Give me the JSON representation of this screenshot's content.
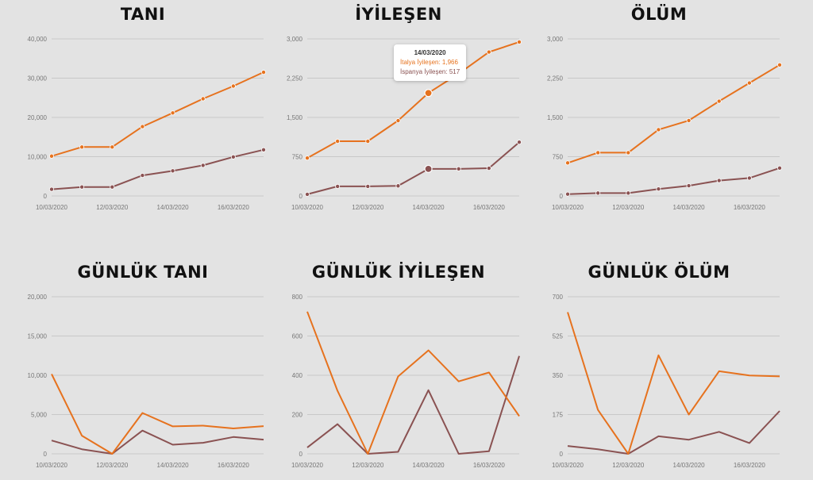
{
  "colors": {
    "italy": "#e6721e",
    "spain": "#8a5252",
    "grid": "#c8c8c8",
    "tick": "#777777"
  },
  "chart_data": [
    {
      "type": "line",
      "title": "TANI",
      "categories": [
        "10/03/2020",
        "11/03/2020",
        "12/03/2020",
        "13/03/2020",
        "14/03/2020",
        "15/03/2020",
        "16/03/2020",
        "17/03/2020"
      ],
      "x_tick_labels": [
        "10/03/2020",
        "12/03/2020",
        "14/03/2020",
        "16/03/2020"
      ],
      "y_ticks": [
        "0",
        "10,000",
        "20,000",
        "30,000",
        "40,000"
      ],
      "ylim": [
        0,
        40000
      ],
      "markers": true,
      "series": [
        {
          "values": [
            10149,
            12462,
            12462,
            17660,
            21157,
            24747,
            27980,
            31506
          ]
        },
        {
          "values": [
            1695,
            2277,
            2277,
            5232,
            6391,
            7798,
            9942,
            11748
          ]
        }
      ]
    },
    {
      "type": "line",
      "title": "İYİLEŞEN",
      "categories": [
        "10/03/2020",
        "11/03/2020",
        "12/03/2020",
        "13/03/2020",
        "14/03/2020",
        "15/03/2020",
        "16/03/2020",
        "17/03/2020"
      ],
      "x_tick_labels": [
        "10/03/2020",
        "12/03/2020",
        "14/03/2020",
        "16/03/2020"
      ],
      "y_ticks": [
        "0",
        "750",
        "1,500",
        "2,250",
        "3,000"
      ],
      "ylim": [
        0,
        3000
      ],
      "markers": true,
      "series": [
        {
          "values": [
            724,
            1045,
            1045,
            1439,
            1966,
            2335,
            2749,
            2941
          ]
        },
        {
          "values": [
            32,
            183,
            183,
            193,
            517,
            517,
            530,
            1028
          ]
        }
      ],
      "tooltip": {
        "index": 4,
        "date": "14/03/2020",
        "line1": "İtalya İyileşen: 1,966",
        "line2": "İspanya İyileşen: 517"
      }
    },
    {
      "type": "line",
      "title": "ÖLÜM",
      "categories": [
        "10/03/2020",
        "11/03/2020",
        "12/03/2020",
        "13/03/2020",
        "14/03/2020",
        "15/03/2020",
        "16/03/2020",
        "17/03/2020"
      ],
      "x_tick_labels": [
        "10/03/2020",
        "12/03/2020",
        "14/03/2020",
        "16/03/2020"
      ],
      "y_ticks": [
        "0",
        "750",
        "1,500",
        "2,250",
        "3,000"
      ],
      "ylim": [
        0,
        3000
      ],
      "markers": true,
      "series": [
        {
          "values": [
            631,
            827,
            827,
            1266,
            1441,
            1809,
            2158,
            2503
          ]
        },
        {
          "values": [
            35,
            55,
            55,
            133,
            196,
            294,
            342,
            533
          ]
        }
      ]
    },
    {
      "type": "line",
      "title": "GÜNLÜK TANI",
      "categories": [
        "10/03/2020",
        "11/03/2020",
        "12/03/2020",
        "13/03/2020",
        "14/03/2020",
        "15/03/2020",
        "16/03/2020",
        "17/03/2020"
      ],
      "x_tick_labels": [
        "10/03/2020",
        "12/03/2020",
        "14/03/2020",
        "16/03/2020"
      ],
      "y_ticks": [
        "0",
        "5,000",
        "10,000",
        "15,000",
        "20,000"
      ],
      "ylim": [
        0,
        20000
      ],
      "markers": false,
      "series": [
        {
          "values": [
            10149,
            2313,
            0,
            5198,
            3497,
            3590,
            3233,
            3526
          ]
        },
        {
          "values": [
            1695,
            582,
            0,
            2955,
            1159,
            1407,
            2144,
            1806
          ]
        }
      ]
    },
    {
      "type": "line",
      "title": "GÜNLÜK İYİLEŞEN",
      "categories": [
        "10/03/2020",
        "11/03/2020",
        "12/03/2020",
        "13/03/2020",
        "14/03/2020",
        "15/03/2020",
        "16/03/2020",
        "17/03/2020"
      ],
      "x_tick_labels": [
        "10/03/2020",
        "12/03/2020",
        "14/03/2020",
        "16/03/2020"
      ],
      "y_ticks": [
        "0",
        "200",
        "400",
        "600",
        "800"
      ],
      "ylim": [
        0,
        800
      ],
      "markers": false,
      "series": [
        {
          "values": [
            724,
            321,
            0,
            394,
            527,
            369,
            414,
            192
          ]
        },
        {
          "values": [
            32,
            151,
            0,
            10,
            324,
            0,
            13,
            498
          ]
        }
      ]
    },
    {
      "type": "line",
      "title": "GÜNLÜK ÖLÜM",
      "categories": [
        "10/03/2020",
        "11/03/2020",
        "12/03/2020",
        "13/03/2020",
        "14/03/2020",
        "15/03/2020",
        "16/03/2020",
        "17/03/2020"
      ],
      "x_tick_labels": [
        "10/03/2020",
        "12/03/2020",
        "14/03/2020",
        "16/03/2020"
      ],
      "y_ticks": [
        "0",
        "175",
        "350",
        "525",
        "700"
      ],
      "ylim": [
        0,
        700
      ],
      "markers": false,
      "series": [
        {
          "values": [
            631,
            196,
            0,
            439,
            175,
            368,
            349,
            345
          ]
        },
        {
          "values": [
            35,
            20,
            0,
            78,
            63,
            98,
            48,
            191
          ]
        }
      ]
    }
  ]
}
